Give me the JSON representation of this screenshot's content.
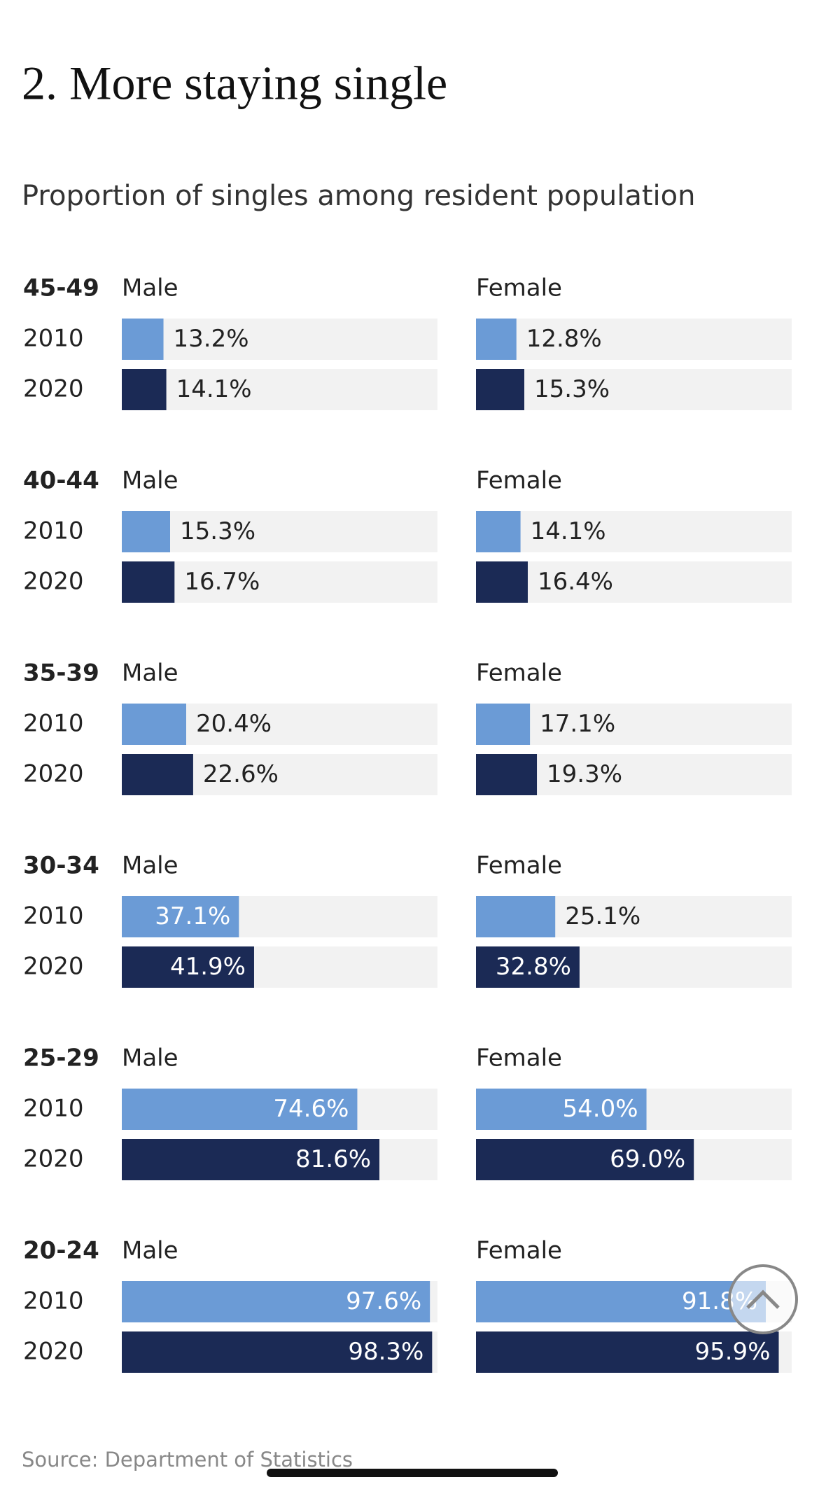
{
  "title": "2. More staying single",
  "subtitle": "Proportion of singles among resident population",
  "source": "Source: Department of Statistics",
  "chart_data": [
    {
      "type": "bar",
      "title": "45-49",
      "categories": [
        "2010",
        "2020"
      ],
      "colors": [
        "#6b9bd6",
        "#1b2a55"
      ],
      "xlim": [
        0,
        100
      ],
      "series": [
        {
          "name": "Male",
          "values": [
            13.2,
            14.1
          ],
          "value_labels": [
            "13.2%",
            "14.1%"
          ]
        },
        {
          "name": "Female",
          "values": [
            12.8,
            15.3
          ],
          "value_labels": [
            "12.8%",
            "15.3%"
          ]
        }
      ]
    },
    {
      "type": "bar",
      "title": "40-44",
      "categories": [
        "2010",
        "2020"
      ],
      "colors": [
        "#6b9bd6",
        "#1b2a55"
      ],
      "xlim": [
        0,
        100
      ],
      "series": [
        {
          "name": "Male",
          "values": [
            15.3,
            16.7
          ],
          "value_labels": [
            "15.3%",
            "16.7%"
          ]
        },
        {
          "name": "Female",
          "values": [
            14.1,
            16.4
          ],
          "value_labels": [
            "14.1%",
            "16.4%"
          ]
        }
      ]
    },
    {
      "type": "bar",
      "title": "35-39",
      "categories": [
        "2010",
        "2020"
      ],
      "colors": [
        "#6b9bd6",
        "#1b2a55"
      ],
      "xlim": [
        0,
        100
      ],
      "series": [
        {
          "name": "Male",
          "values": [
            20.4,
            22.6
          ],
          "value_labels": [
            "20.4%",
            "22.6%"
          ]
        },
        {
          "name": "Female",
          "values": [
            17.1,
            19.3
          ],
          "value_labels": [
            "17.1%",
            "19.3%"
          ]
        }
      ]
    },
    {
      "type": "bar",
      "title": "30-34",
      "categories": [
        "2010",
        "2020"
      ],
      "colors": [
        "#6b9bd6",
        "#1b2a55"
      ],
      "xlim": [
        0,
        100
      ],
      "series": [
        {
          "name": "Male",
          "values": [
            37.1,
            41.9
          ],
          "value_labels": [
            "37.1%",
            "41.9%"
          ]
        },
        {
          "name": "Female",
          "values": [
            25.1,
            32.8
          ],
          "value_labels": [
            "25.1%",
            "32.8%"
          ]
        }
      ]
    },
    {
      "type": "bar",
      "title": "25-29",
      "categories": [
        "2010",
        "2020"
      ],
      "colors": [
        "#6b9bd6",
        "#1b2a55"
      ],
      "xlim": [
        0,
        100
      ],
      "series": [
        {
          "name": "Male",
          "values": [
            74.6,
            81.6
          ],
          "value_labels": [
            "74.6%",
            "81.6%"
          ]
        },
        {
          "name": "Female",
          "values": [
            54.0,
            69.0
          ],
          "value_labels": [
            "54.0%",
            "69.0%"
          ]
        }
      ]
    },
    {
      "type": "bar",
      "title": "20-24",
      "categories": [
        "2010",
        "2020"
      ],
      "colors": [
        "#6b9bd6",
        "#1b2a55"
      ],
      "xlim": [
        0,
        100
      ],
      "series": [
        {
          "name": "Male",
          "values": [
            97.6,
            98.3
          ],
          "value_labels": [
            "97.6%",
            "98.3%"
          ]
        },
        {
          "name": "Female",
          "values": [
            91.8,
            95.9
          ],
          "value_labels": [
            "91.8%",
            "95.9%"
          ]
        }
      ]
    }
  ]
}
